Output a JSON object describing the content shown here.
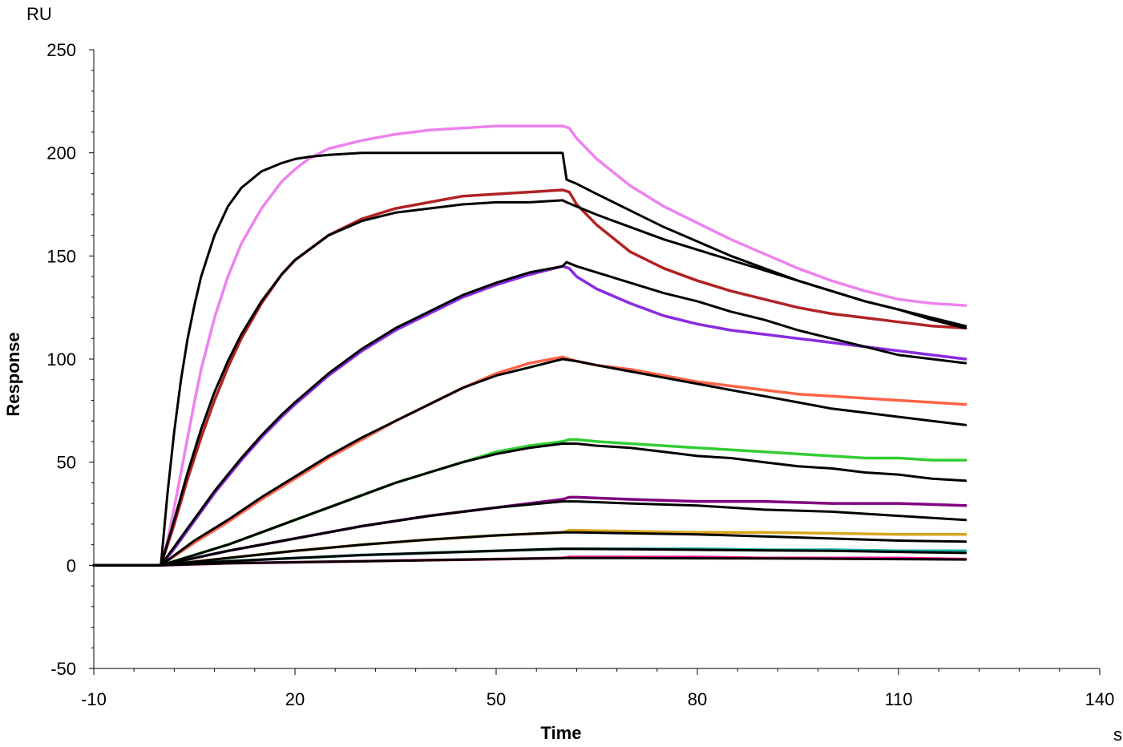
{
  "chart_data": {
    "type": "line",
    "xlabel": "Time",
    "ylabel": "Response",
    "x_unit": "s",
    "y_unit": "RU",
    "xlim": [
      -10,
      140
    ],
    "ylim": [
      -50,
      250
    ],
    "x_ticks": [
      -10,
      20,
      50,
      80,
      110,
      140
    ],
    "y_ticks": [
      -50,
      0,
      50,
      100,
      150,
      200,
      250
    ],
    "grid": false,
    "legend": "none",
    "association_start": 0,
    "dissociation_start": 60,
    "run_end": 120,
    "series": [
      {
        "kind": "measured",
        "color": "#ee82ee",
        "x": [
          -10,
          0,
          1,
          2,
          3,
          4,
          5,
          6,
          8,
          10,
          12,
          15,
          18,
          20,
          22,
          25,
          30,
          35,
          40,
          45,
          50,
          55,
          59.9,
          60.9,
          62,
          65,
          70,
          75,
          80,
          85,
          90,
          95,
          100,
          105,
          110,
          115,
          120
        ],
        "y": [
          0,
          0,
          12,
          28,
          45,
          62,
          79,
          95,
          120,
          140,
          156,
          173,
          186,
          192,
          197,
          202,
          206,
          209,
          211,
          212,
          213,
          213,
          213,
          212,
          207,
          197,
          184,
          174,
          166,
          158,
          151,
          144,
          138,
          133,
          129,
          127,
          126
        ]
      },
      {
        "kind": "measured",
        "color": "#b22222",
        "x": [
          -10,
          0,
          2,
          4,
          6,
          8,
          10,
          12,
          15,
          18,
          20,
          25,
          30,
          35,
          40,
          45,
          50,
          55,
          59.9,
          60.9,
          62,
          65,
          70,
          75,
          80,
          85,
          90,
          95,
          100,
          105,
          110,
          115,
          120
        ],
        "y": [
          0,
          0,
          20,
          42,
          62,
          80,
          96,
          110,
          127,
          141,
          148,
          160,
          168,
          173,
          176,
          179,
          180,
          181,
          182,
          181,
          175,
          165,
          152,
          144,
          138,
          133,
          129,
          125,
          122,
          120,
          118,
          116,
          115
        ]
      },
      {
        "kind": "measured",
        "color": "#8a2be2",
        "x": [
          -10,
          0,
          2,
          4,
          6,
          8,
          10,
          12,
          15,
          18,
          20,
          25,
          30,
          35,
          40,
          45,
          50,
          55,
          59.9,
          60.9,
          62,
          65,
          70,
          75,
          80,
          85,
          90,
          95,
          100,
          105,
          110,
          115,
          120
        ],
        "y": [
          0,
          0,
          8,
          17,
          26,
          35,
          43,
          51,
          62,
          72,
          78,
          92,
          104,
          114,
          122,
          130,
          136,
          141,
          145,
          144,
          140,
          134,
          127,
          121,
          117,
          114,
          112,
          110,
          108,
          106,
          104,
          102,
          100
        ]
      },
      {
        "kind": "measured",
        "color": "#ff6347",
        "x": [
          -10,
          0,
          5,
          10,
          15,
          20,
          25,
          30,
          35,
          40,
          45,
          50,
          55,
          59.9,
          60.9,
          62,
          65,
          70,
          75,
          80,
          85,
          90,
          95,
          100,
          105,
          110,
          115,
          120
        ],
        "y": [
          0,
          0,
          11,
          21,
          32,
          42,
          52,
          61,
          70,
          78,
          86,
          93,
          98,
          101,
          100,
          99,
          97,
          95,
          92,
          89,
          87,
          85,
          83,
          82,
          81,
          80,
          79,
          78
        ]
      },
      {
        "kind": "measured",
        "color": "#32cd32",
        "x": [
          -10,
          0,
          5,
          10,
          15,
          20,
          25,
          30,
          35,
          40,
          45,
          50,
          55,
          59.9,
          60.9,
          62,
          65,
          70,
          75,
          80,
          85,
          90,
          95,
          100,
          105,
          110,
          115,
          120
        ],
        "y": [
          0,
          0,
          5,
          10,
          16,
          22,
          28,
          34,
          40,
          45,
          50,
          55,
          58,
          60,
          61,
          61,
          60,
          59,
          58,
          57,
          56,
          55,
          54,
          53,
          52,
          52,
          51,
          51
        ]
      },
      {
        "kind": "measured",
        "color": "#800080",
        "x": [
          -10,
          0,
          10,
          20,
          30,
          40,
          50,
          59.9,
          60.9,
          62,
          70,
          80,
          90,
          100,
          110,
          120
        ],
        "y": [
          0,
          0,
          7,
          13,
          19,
          24,
          28,
          32,
          33,
          33,
          32,
          31,
          31,
          30,
          30,
          29
        ]
      },
      {
        "kind": "measured",
        "color": "#daa520",
        "x": [
          -10,
          0,
          10,
          20,
          30,
          40,
          50,
          59.9,
          60.9,
          62,
          70,
          80,
          90,
          100,
          110,
          120
        ],
        "y": [
          0,
          0,
          3.5,
          7,
          10,
          12.5,
          14.5,
          16,
          17,
          17,
          16.5,
          16,
          16,
          15.5,
          15,
          15
        ]
      },
      {
        "kind": "measured",
        "color": "#20b2aa",
        "x": [
          -10,
          0,
          10,
          20,
          30,
          40,
          50,
          59.9,
          60.9,
          62,
          70,
          80,
          90,
          100,
          110,
          120
        ],
        "y": [
          0,
          0,
          2,
          3.5,
          5,
          6,
          7,
          8,
          8,
          8,
          8,
          8,
          7.5,
          7.5,
          7,
          7
        ]
      },
      {
        "kind": "measured",
        "color": "#ff1493",
        "x": [
          -10,
          0,
          10,
          20,
          30,
          40,
          50,
          59.9,
          60.9,
          62,
          70,
          80,
          90,
          100,
          110,
          120
        ],
        "y": [
          0,
          0,
          1,
          1.5,
          2,
          2.5,
          3,
          3.5,
          4,
          4,
          4,
          4,
          3.5,
          3.5,
          3.5,
          3
        ]
      },
      {
        "kind": "fit",
        "color": "#000000",
        "x": [
          -10,
          0,
          1,
          2,
          3,
          4,
          5,
          6,
          8,
          10,
          12,
          15,
          18,
          20,
          22,
          25,
          30,
          35,
          40,
          45,
          50,
          55,
          59.9,
          60.5,
          62,
          65,
          70,
          75,
          80,
          85,
          90,
          95,
          100,
          105,
          110,
          115,
          120
        ],
        "y": [
          0,
          0,
          35,
          65,
          90,
          110,
          126,
          140,
          160,
          174,
          183,
          191,
          195,
          197,
          198,
          199,
          200,
          200,
          200,
          200,
          200,
          200,
          200,
          187,
          185,
          180,
          172,
          164,
          157,
          150,
          144,
          138,
          133,
          128,
          124,
          120,
          116
        ]
      },
      {
        "kind": "fit",
        "color": "#000000",
        "x": [
          -10,
          0,
          2,
          4,
          6,
          8,
          10,
          12,
          15,
          18,
          20,
          25,
          30,
          35,
          40,
          45,
          50,
          55,
          59.9,
          60.5,
          62,
          65,
          70,
          75,
          80,
          85,
          90,
          95,
          100,
          105,
          110,
          115,
          120
        ],
        "y": [
          0,
          0,
          22,
          45,
          66,
          84,
          99,
          112,
          128,
          141,
          148,
          160,
          167,
          171,
          173,
          175,
          176,
          176,
          177,
          176,
          174,
          170,
          164,
          158,
          153,
          148,
          143,
          138,
          133,
          128,
          124,
          119,
          115
        ]
      },
      {
        "kind": "fit",
        "color": "#000000",
        "x": [
          -10,
          0,
          2,
          4,
          6,
          8,
          10,
          12,
          15,
          18,
          20,
          25,
          30,
          35,
          40,
          45,
          50,
          55,
          59.9,
          60.5,
          62,
          65,
          70,
          75,
          80,
          85,
          90,
          95,
          100,
          105,
          110,
          115,
          120
        ],
        "y": [
          0,
          0,
          9,
          18,
          27,
          36,
          44,
          52,
          63,
          73,
          79,
          93,
          105,
          115,
          123,
          131,
          137,
          142,
          145,
          147,
          145,
          142,
          137,
          132,
          128,
          123,
          119,
          114,
          110,
          106,
          102,
          100,
          98
        ]
      },
      {
        "kind": "fit",
        "color": "#000000",
        "x": [
          -10,
          0,
          5,
          10,
          15,
          20,
          25,
          30,
          35,
          40,
          45,
          50,
          55,
          59.9,
          62,
          65,
          70,
          75,
          80,
          85,
          90,
          95,
          100,
          105,
          110,
          115,
          120
        ],
        "y": [
          0,
          0,
          12,
          22,
          33,
          43,
          53,
          62,
          70,
          78,
          86,
          92,
          96,
          100,
          99,
          97,
          94,
          91,
          88,
          85,
          82,
          79,
          76,
          74,
          72,
          70,
          68
        ]
      },
      {
        "kind": "fit",
        "color": "#000000",
        "x": [
          -10,
          0,
          5,
          10,
          15,
          20,
          25,
          30,
          35,
          40,
          45,
          50,
          55,
          59.9,
          62,
          65,
          70,
          75,
          80,
          85,
          90,
          95,
          100,
          105,
          110,
          115,
          120
        ],
        "y": [
          0,
          0,
          5,
          10,
          16,
          22,
          28,
          34,
          40,
          45,
          50,
          54,
          57,
          59,
          59,
          58,
          57,
          55,
          53,
          52,
          50,
          48,
          47,
          45,
          44,
          42,
          41
        ]
      },
      {
        "kind": "fit",
        "color": "#000000",
        "x": [
          -10,
          0,
          10,
          20,
          30,
          40,
          50,
          59.9,
          62,
          70,
          80,
          90,
          100,
          110,
          120
        ],
        "y": [
          0,
          0,
          7,
          13,
          19,
          24,
          28,
          31,
          31,
          30,
          29,
          27,
          26,
          24,
          22
        ]
      },
      {
        "kind": "fit",
        "color": "#000000",
        "x": [
          -10,
          0,
          10,
          20,
          30,
          40,
          50,
          59.9,
          62,
          70,
          80,
          90,
          100,
          110,
          120
        ],
        "y": [
          0,
          0,
          3.5,
          7,
          10,
          12.5,
          14.5,
          16,
          16,
          15.5,
          15,
          14,
          13,
          12,
          11.5
        ]
      },
      {
        "kind": "fit",
        "color": "#000000",
        "x": [
          -10,
          0,
          10,
          20,
          30,
          40,
          50,
          59.9,
          62,
          70,
          80,
          90,
          100,
          110,
          120
        ],
        "y": [
          0,
          0,
          2,
          3.5,
          5,
          6,
          7,
          8,
          8,
          7.8,
          7.5,
          7.2,
          7,
          6.5,
          6
        ]
      },
      {
        "kind": "fit",
        "color": "#000000",
        "x": [
          -10,
          0,
          10,
          20,
          30,
          40,
          50,
          59.9,
          62,
          70,
          80,
          90,
          100,
          110,
          120
        ],
        "y": [
          0,
          0,
          1,
          1.5,
          2,
          2.5,
          3,
          3.5,
          3.5,
          3.5,
          3.4,
          3.3,
          3.2,
          3,
          2.8
        ]
      }
    ]
  }
}
